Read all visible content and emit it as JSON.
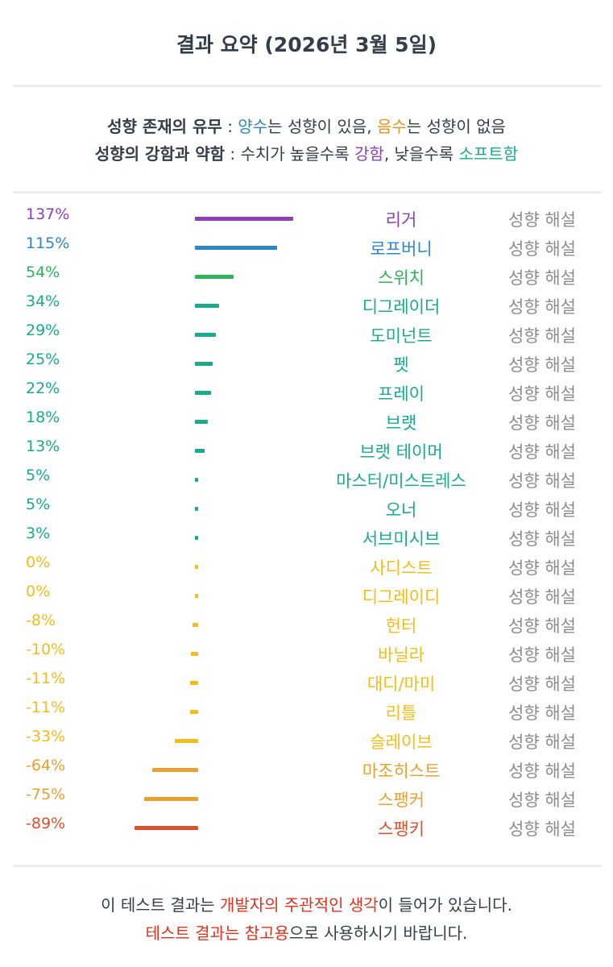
{
  "title": "결과 요약 (2026년 3월 5일)",
  "legend": {
    "line1": {
      "bold": "성향 존재의 유무",
      "sep": " : ",
      "positive": "양수",
      "mid1": "는 성향이 있음, ",
      "negative": "음수",
      "mid2": "는 성향이 없음"
    },
    "line2": {
      "bold": "성향의 강함과 약함",
      "sep": " : 수치가 높을수록 ",
      "strong": "강함",
      "mid": ", 낮을수록 ",
      "soft": "소프트함"
    }
  },
  "colors": {
    "purple": "#8f3fb5",
    "blue": "#2f86c4",
    "green": "#2fb25a",
    "teal": "#1aaa8c",
    "yellow": "#f2bc1b",
    "orange": "#e8a12e",
    "red": "#e0502a",
    "gray": "#8c8c8c"
  },
  "interp_label": "성향 해설",
  "chart_data": {
    "type": "bar",
    "categories": [
      "리거",
      "로프버니",
      "스위치",
      "디그레이더",
      "도미넌트",
      "펫",
      "프레이",
      "브랫",
      "브랫 테이머",
      "마스터/미스트레스",
      "오너",
      "서브미시브",
      "사디스트",
      "디그레이디",
      "헌터",
      "바닐라",
      "대디/마미",
      "리틀",
      "슬레이브",
      "마조히스트",
      "스팽커",
      "스팽키"
    ],
    "values": [
      137,
      115,
      54,
      34,
      29,
      25,
      22,
      18,
      13,
      5,
      5,
      3,
      0,
      0,
      -8,
      -10,
      -11,
      -11,
      -33,
      -64,
      -75,
      -89
    ],
    "labels": [
      "137%",
      "115%",
      "54%",
      "34%",
      "29%",
      "25%",
      "22%",
      "18%",
      "13%",
      "5%",
      "5%",
      "3%",
      "0%",
      "0%",
      "-8%",
      "-10%",
      "-11%",
      "-11%",
      "-33%",
      "-64%",
      "-75%",
      "-89%"
    ],
    "colors": [
      "purple",
      "blue",
      "green",
      "teal",
      "teal",
      "teal",
      "teal",
      "teal",
      "teal",
      "teal",
      "teal",
      "teal",
      "yellow",
      "yellow",
      "yellow",
      "yellow",
      "yellow",
      "yellow",
      "yellow",
      "orange",
      "orange",
      "red"
    ]
  },
  "footer": {
    "line1": {
      "a": "이 테스트 결과는 ",
      "b": "개발자의 주관적인 생각",
      "c": "이 들어가 있습니다."
    },
    "line2": {
      "a": "테스트 결과는 참고용",
      "b": "으로 사용하시기 바랍니다."
    }
  }
}
